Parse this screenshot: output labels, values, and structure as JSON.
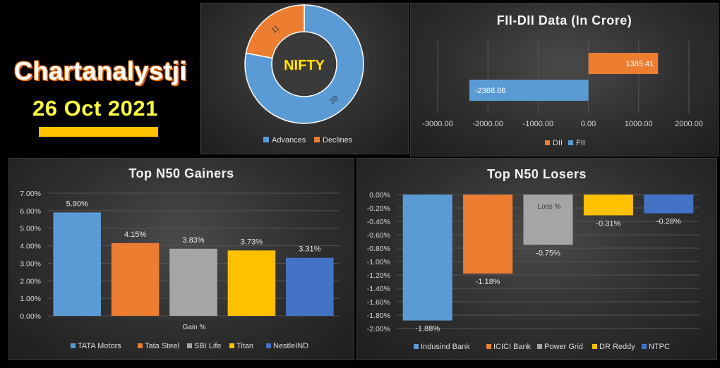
{
  "brand": {
    "name": "Chartanalystji",
    "date": "26 Oct 2021"
  },
  "colors": {
    "blue": "#5b9bd5",
    "orange": "#ed7d31",
    "gray": "#a5a5a5",
    "yellow": "#ffc000",
    "darkblue": "#4472c4"
  },
  "chart_data": [
    {
      "type": "pie",
      "center_label": "NIFTY",
      "categories": [
        "Advances",
        "Declines"
      ],
      "values": [
        39,
        11
      ],
      "legend": "bottom"
    },
    {
      "type": "bar",
      "orientation": "horizontal",
      "title": "FII-DII Data  (In Crore)",
      "series": [
        {
          "name": "DII",
          "value": 1385.41,
          "label": "1385.41"
        },
        {
          "name": "FII",
          "value": -2368.66,
          "label": "-2368.66"
        }
      ],
      "xlim": [
        -3000,
        2000
      ],
      "xticks": [
        "-3000.00",
        "-2000.00",
        "-1000.00",
        "0.00",
        "1000.00",
        "2000.00"
      ],
      "legend": "bottom",
      "grid": true
    },
    {
      "type": "bar",
      "title": "Top  N50  Gainers",
      "xlabel": "Gain %",
      "categories": [
        "TATA Motors",
        "Tata Steel",
        "SBI Life",
        "Titan",
        "NestleIND"
      ],
      "values": [
        5.9,
        4.15,
        3.83,
        3.73,
        3.31
      ],
      "value_labels": [
        "5.90%",
        "4.15%",
        "3.83%",
        "3.73%",
        "3.31%"
      ],
      "ylim": [
        0,
        7
      ],
      "yticks": [
        "0.00%",
        "1.00%",
        "2.00%",
        "3.00%",
        "4.00%",
        "5.00%",
        "6.00%",
        "7.00%"
      ],
      "legend": "bottom",
      "grid": true
    },
    {
      "type": "bar",
      "title": "Top  N50  Losers",
      "xlabel": "Loss %",
      "categories": [
        "Indusind Bank",
        "ICICI Bank",
        "Power Grid",
        "DR Reddy",
        "NTPC"
      ],
      "values": [
        -1.88,
        -1.18,
        -0.75,
        -0.31,
        -0.28
      ],
      "value_labels": [
        "-1.88%",
        "-1.18%",
        "-0.75%",
        "-0.31%",
        "-0.28%"
      ],
      "ylim": [
        -2,
        0
      ],
      "yticks": [
        "0.00%",
        "-0.20%",
        "-0.40%",
        "-0.60%",
        "-0.80%",
        "-1.00%",
        "-1.20%",
        "-1.40%",
        "-1.60%",
        "-1.80%",
        "-2.00%"
      ],
      "legend": "bottom",
      "grid": true
    }
  ]
}
